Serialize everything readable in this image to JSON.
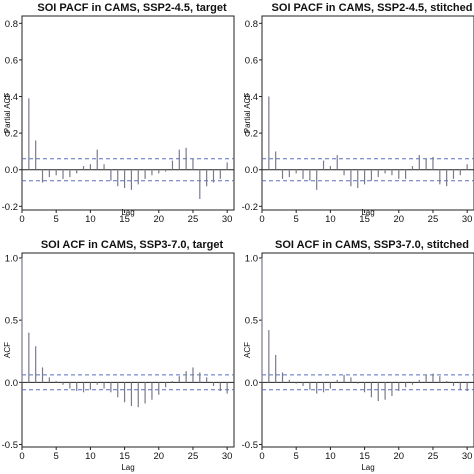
{
  "chart_data": [
    {
      "type": "bar",
      "subtype": "correlogram",
      "title": "SOI PACF in CAMS, SSP2-4.5, target",
      "xlabel": "Lag",
      "ylabel": "Partial ACF",
      "xlim": [
        0,
        31
      ],
      "ylim": [
        -0.22,
        0.84
      ],
      "xticks": [
        "0",
        "5",
        "10",
        "15",
        "20",
        "25",
        "30"
      ],
      "yticks": [
        "-0.2",
        "0.0",
        "0.2",
        "0.4",
        "0.6",
        "0.8"
      ],
      "confidence_band": 0.06,
      "lags": [
        1,
        2,
        3,
        4,
        5,
        6,
        7,
        8,
        9,
        10,
        11,
        12,
        13,
        14,
        15,
        16,
        17,
        18,
        19,
        20,
        21,
        22,
        23,
        24,
        25,
        26,
        27,
        28,
        29,
        30
      ],
      "values": [
        0.39,
        0.16,
        -0.07,
        -0.04,
        -0.03,
        -0.05,
        -0.04,
        -0.02,
        0.02,
        0.03,
        0.11,
        0.03,
        -0.06,
        -0.09,
        -0.1,
        -0.11,
        -0.08,
        -0.05,
        -0.03,
        -0.02,
        -0.01,
        0.05,
        0.11,
        0.12,
        0.06,
        -0.16,
        -0.09,
        -0.07,
        -0.05,
        0.04
      ]
    },
    {
      "type": "bar",
      "subtype": "correlogram",
      "title": "SOI PACF in CAMS, SSP2-4.5, stitched",
      "xlabel": "Lag",
      "ylabel": "Partial ACF",
      "xlim": [
        0,
        31
      ],
      "ylim": [
        -0.22,
        0.84
      ],
      "xticks": [
        "0",
        "5",
        "10",
        "15",
        "20",
        "25",
        "30"
      ],
      "yticks": [
        "-0.2",
        "0.0",
        "0.2",
        "0.4",
        "0.6",
        "0.8"
      ],
      "confidence_band": 0.06,
      "lags": [
        1,
        2,
        3,
        4,
        5,
        6,
        7,
        8,
        9,
        10,
        11,
        12,
        13,
        14,
        15,
        16,
        17,
        18,
        19,
        20,
        21,
        22,
        23,
        24,
        25,
        26,
        27,
        28,
        29,
        30
      ],
      "values": [
        0.4,
        0.1,
        -0.05,
        -0.04,
        -0.02,
        -0.05,
        -0.06,
        -0.11,
        0.05,
        0.02,
        0.08,
        -0.03,
        -0.09,
        -0.1,
        -0.08,
        -0.06,
        -0.04,
        -0.02,
        -0.03,
        -0.05,
        -0.05,
        0.02,
        0.08,
        0.06,
        0.07,
        -0.08,
        -0.09,
        -0.05,
        -0.03,
        0.03
      ]
    },
    {
      "type": "bar",
      "subtype": "correlogram",
      "title": "SOI ACF in CAMS, SSP3-7.0, target",
      "xlabel": "Lag",
      "ylabel": "ACF",
      "xlim": [
        0,
        31
      ],
      "ylim": [
        -0.52,
        1.04
      ],
      "xticks": [
        "0",
        "5",
        "10",
        "15",
        "20",
        "25",
        "30"
      ],
      "yticks": [
        "-0.5",
        "0.0",
        "0.5",
        "1.0"
      ],
      "confidence_band": 0.06,
      "lags": [
        0,
        1,
        2,
        3,
        4,
        5,
        6,
        7,
        8,
        9,
        10,
        11,
        12,
        13,
        14,
        15,
        16,
        17,
        18,
        19,
        20,
        21,
        22,
        23,
        24,
        25,
        26,
        27,
        28,
        29,
        30
      ],
      "values": [
        1.0,
        0.4,
        0.29,
        0.12,
        0.04,
        0.01,
        -0.02,
        -0.05,
        -0.07,
        -0.08,
        -0.06,
        -0.02,
        -0.05,
        -0.08,
        -0.12,
        -0.16,
        -0.19,
        -0.2,
        -0.17,
        -0.14,
        -0.1,
        -0.04,
        0.01,
        0.05,
        0.09,
        0.12,
        0.08,
        0.04,
        -0.03,
        -0.07,
        -0.09
      ]
    },
    {
      "type": "bar",
      "subtype": "correlogram",
      "title": "SOI ACF in CAMS, SSP3-7.0, stitched",
      "xlabel": "Lag",
      "ylabel": "ACF",
      "xlim": [
        0,
        31
      ],
      "ylim": [
        -0.52,
        1.04
      ],
      "xticks": [
        "0",
        "5",
        "10",
        "15",
        "20",
        "25",
        "30"
      ],
      "yticks": [
        "-0.5",
        "0.0",
        "0.5",
        "1.0"
      ],
      "confidence_band": 0.06,
      "lags": [
        0,
        1,
        2,
        3,
        4,
        5,
        6,
        7,
        8,
        9,
        10,
        11,
        12,
        13,
        14,
        15,
        16,
        17,
        18,
        19,
        20,
        21,
        22,
        23,
        24,
        25,
        26,
        27,
        28,
        29,
        30
      ],
      "values": [
        1.0,
        0.42,
        0.22,
        0.08,
        0.02,
        -0.01,
        -0.03,
        -0.06,
        -0.09,
        -0.08,
        -0.05,
        0.02,
        0.06,
        0.04,
        -0.01,
        -0.08,
        -0.12,
        -0.15,
        -0.14,
        -0.11,
        -0.07,
        -0.04,
        -0.02,
        0.02,
        0.06,
        0.07,
        0.05,
        0.01,
        -0.03,
        -0.06,
        -0.07
      ]
    }
  ],
  "colors": {
    "bar": "#7a7a8c",
    "confidence_band": "#5b6fc2",
    "axis": "#222222",
    "zero_line": "#222222",
    "text": "#111111"
  }
}
